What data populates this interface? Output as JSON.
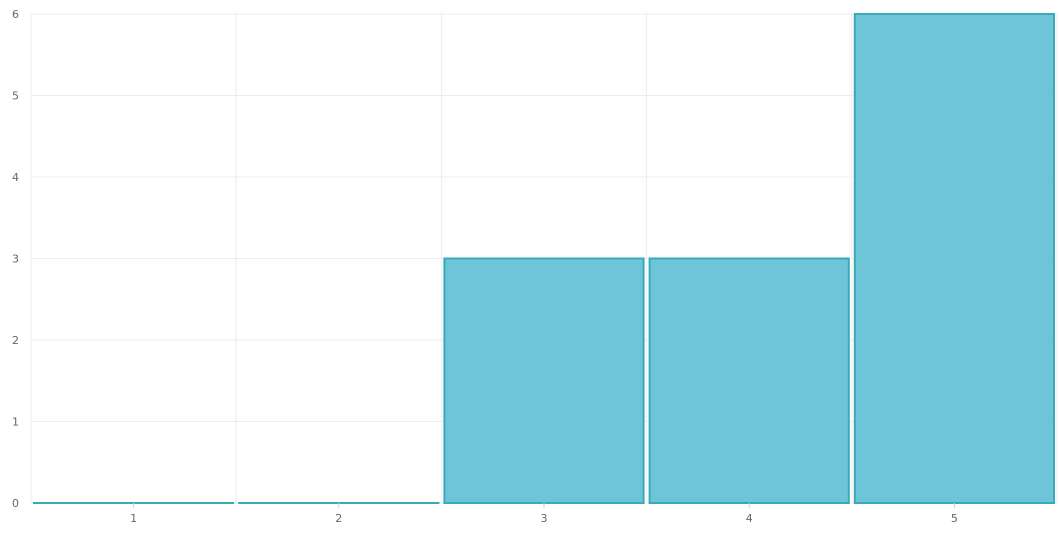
{
  "chart_data": {
    "type": "bar",
    "categories": [
      "1",
      "2",
      "3",
      "4",
      "5"
    ],
    "values": [
      0,
      0,
      3,
      3,
      6
    ],
    "title": "",
    "xlabel": "",
    "ylabel": "",
    "ylim": [
      0,
      6
    ],
    "yticks": [
      "0",
      "1",
      "2",
      "3",
      "4",
      "5",
      "6"
    ],
    "grid": true,
    "colors": {
      "bar_fill": "#6ec5d7",
      "bar_stroke": "#3aa9b8",
      "grid": "#ececec",
      "axis_text": "#666666"
    }
  }
}
